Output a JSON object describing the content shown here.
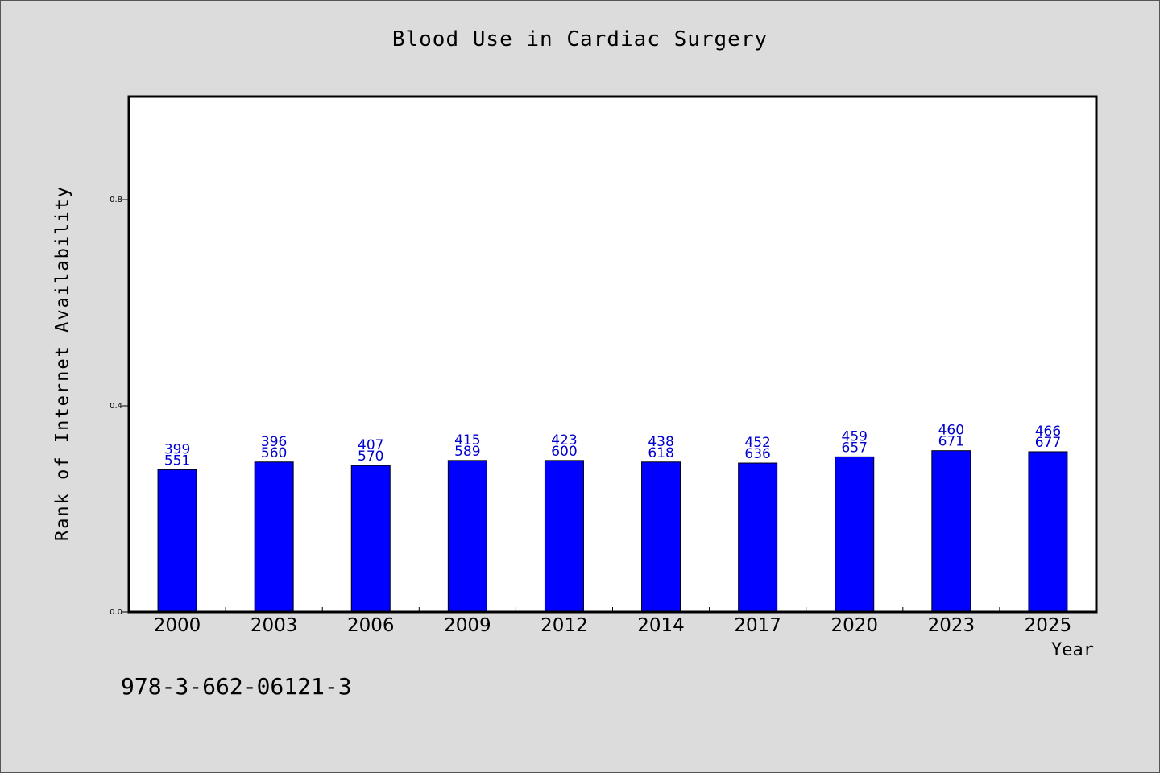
{
  "chart_data": {
    "type": "bar",
    "title": "Blood Use in Cardiac Surgery",
    "xlabel": "Year",
    "ylabel": "Rank of Internet Availability",
    "ylim": [
      0,
      1.0
    ],
    "yticks": [
      "0.0",
      "0.4",
      "0.8"
    ],
    "ytick_values": [
      0.0,
      0.4,
      0.8
    ],
    "grid": false,
    "categories": [
      "2000",
      "2003",
      "2006",
      "2009",
      "2012",
      "2014",
      "2017",
      "2020",
      "2023",
      "2025"
    ],
    "values": [
      0.276,
      0.291,
      0.284,
      0.294,
      0.294,
      0.291,
      0.289,
      0.301,
      0.313,
      0.311
    ],
    "data_labels": [
      [
        "399",
        "551"
      ],
      [
        "396",
        "560"
      ],
      [
        "407",
        "570"
      ],
      [
        "415",
        "589"
      ],
      [
        "423",
        "600"
      ],
      [
        "438",
        "618"
      ],
      [
        "452",
        "636"
      ],
      [
        "459",
        "657"
      ],
      [
        "460",
        "671"
      ],
      [
        "466",
        "677"
      ]
    ],
    "colors": {
      "bar": "#0000ff",
      "data_label": "#0000cc",
      "plot_bg": "#ffffff",
      "page_bg": "#dcdcdc"
    }
  },
  "footer": {
    "isbn": "978-3-662-06121-3"
  }
}
